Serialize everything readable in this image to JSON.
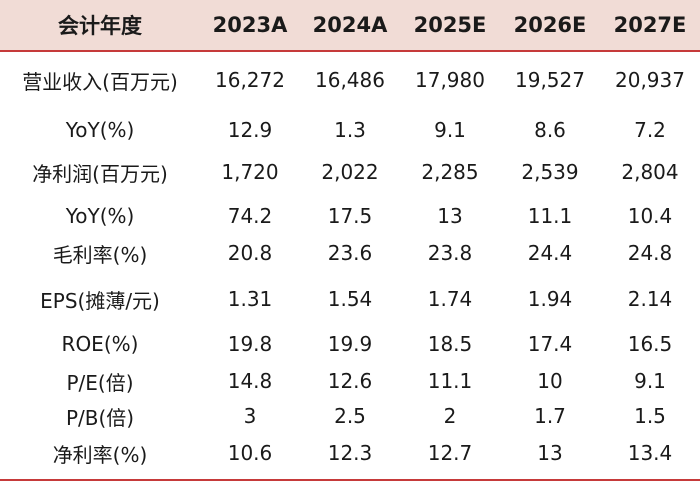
{
  "header": [
    "会计年度",
    "2023A",
    "2024A",
    "2025E",
    "2026E",
    "2027E"
  ],
  "rows": [
    [
      "营业收入(百万元)",
      "16,272",
      "16,486",
      "17,980",
      "19,527",
      "20,937"
    ],
    [
      "YoY(%)",
      "12.9",
      "1.3",
      "9.1",
      "8.6",
      "7.2"
    ],
    [
      "净利润(百万元)",
      "1,720",
      "2,022",
      "2,285",
      "2,539",
      "2,804"
    ],
    [
      "YoY(%)",
      "74.2",
      "17.5",
      "13",
      "11.1",
      "10.4"
    ],
    [
      "毛利率(%)",
      "20.8",
      "23.6",
      "23.8",
      "24.4",
      "24.8"
    ],
    [
      "EPS(摊薄/元)",
      "1.31",
      "1.54",
      "1.74",
      "1.94",
      "2.14"
    ],
    [
      "ROE(%)",
      "19.8",
      "19.9",
      "18.5",
      "17.4",
      "16.5"
    ],
    [
      "P/E(倍)",
      "14.8",
      "12.6",
      "11.1",
      "10",
      "9.1"
    ],
    [
      "P/B(倍)",
      "3",
      "2.5",
      "2",
      "1.7",
      "1.5"
    ],
    [
      "净利率(%)",
      "10.6",
      "12.3",
      "12.7",
      "13",
      "13.4"
    ]
  ],
  "colors": {
    "header_bg": "#f1dcd6",
    "rule": "#c63a3a"
  }
}
